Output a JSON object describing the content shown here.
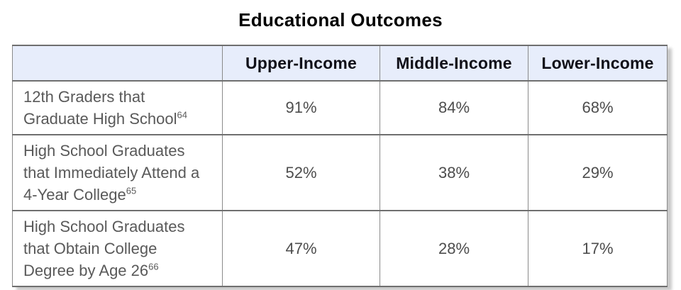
{
  "title": "Educational Outcomes",
  "table": {
    "corner_label": "",
    "headers": [
      "Upper-Income",
      "Middle-Income",
      "Lower-Income"
    ],
    "rows": [
      {
        "label": "12th Graders that Graduate High School",
        "ref": "64",
        "values": [
          "91%",
          "84%",
          "68%"
        ]
      },
      {
        "label": "High School Graduates that Immediately Attend a 4-Year College",
        "ref": "65",
        "values": [
          "52%",
          "38%",
          "29%"
        ]
      },
      {
        "label": "High School Graduates that Obtain College Degree by Age 26",
        "ref": "66",
        "values": [
          "47%",
          "28%",
          "17%"
        ]
      }
    ]
  },
  "colors": {
    "header_bg": "#e7edfb",
    "grid_line": "#6f6f6f",
    "label_text": "#595959",
    "value_text": "#4d4d4d",
    "header_text": "#101018",
    "shadow": "#c9c9c9"
  },
  "chart_data": {
    "type": "table",
    "title": "Educational Outcomes",
    "categories": [
      "Upper-Income",
      "Middle-Income",
      "Lower-Income"
    ],
    "unit": "%",
    "series": [
      {
        "name": "12th Graders that Graduate High School (note 64)",
        "values": [
          91,
          84,
          68
        ]
      },
      {
        "name": "High School Graduates that Immediately Attend a 4-Year College (note 65)",
        "values": [
          52,
          38,
          29
        ]
      },
      {
        "name": "High School Graduates that Obtain College Degree by Age 26 (note 66)",
        "values": [
          47,
          28,
          17
        ]
      }
    ]
  }
}
